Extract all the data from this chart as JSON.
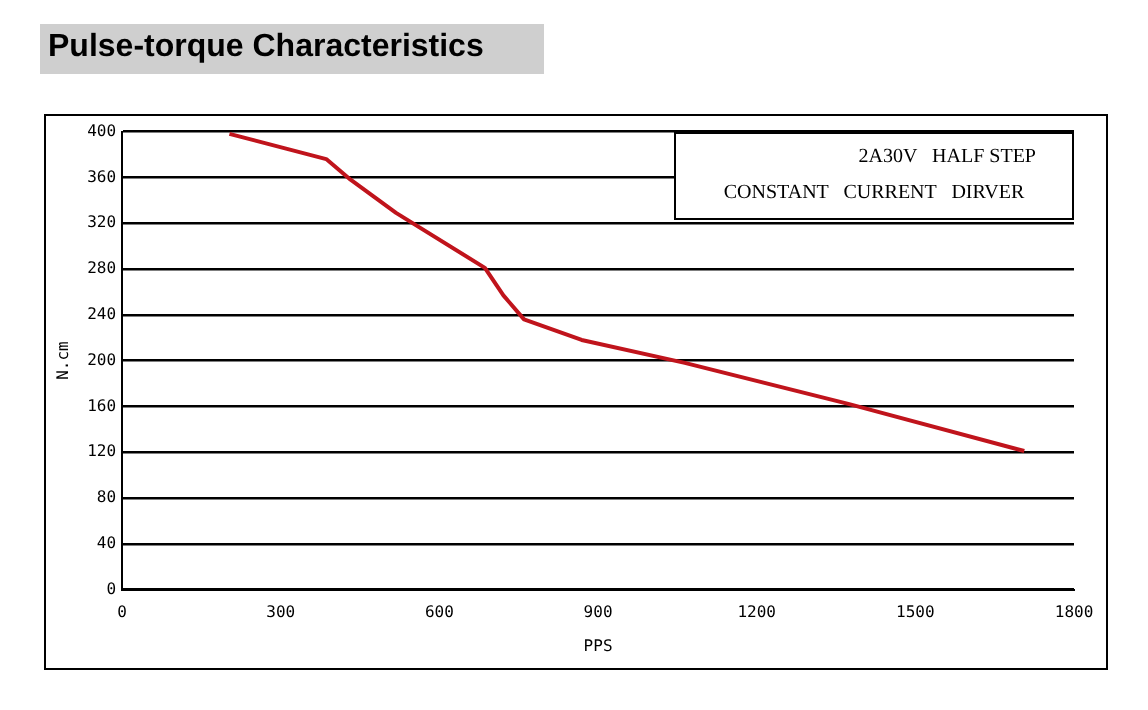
{
  "chart_data": {
    "type": "line",
    "title": "Pulse-torque Characteristics",
    "xlabel": "PPS",
    "ylabel": "N.cm",
    "series": [
      {
        "color": "#c0141c",
        "x": [
          203,
          386,
          432,
          518,
          686,
          721,
          760,
          869,
          1064,
          1375,
          1706
        ],
        "values": [
          398,
          376,
          358,
          329,
          281,
          257,
          236,
          218,
          198,
          162,
          121
        ]
      }
    ],
    "xlim": [
      0,
      1800
    ],
    "xticks": [
      0,
      300,
      600,
      900,
      1200,
      1500,
      1800
    ],
    "ylim": [
      0,
      400
    ],
    "yticks": [
      0,
      40,
      80,
      120,
      160,
      200,
      240,
      280,
      320,
      360,
      400
    ],
    "grid": "y",
    "legend": false,
    "marker": "none",
    "line_style": "solid",
    "annotations": [
      "2A30V   HALF STEP",
      "CONSTANT   CURRENT   DIRVER"
    ]
  }
}
